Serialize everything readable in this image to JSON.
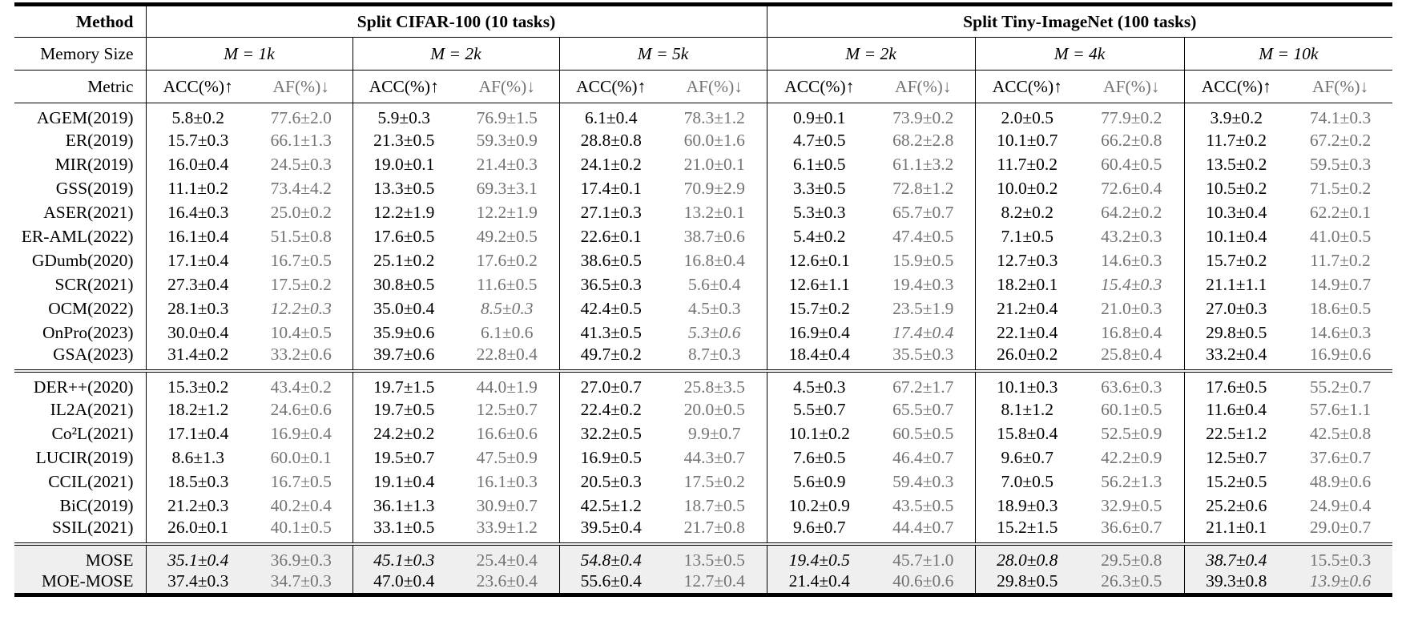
{
  "header": {
    "method_label": "Method",
    "dataset1": "Split CIFAR-100 (10 tasks)",
    "dataset2": "Split Tiny-ImageNet (100 tasks)",
    "memory_label": "Memory Size",
    "memory_sizes": [
      "M = 1k",
      "M = 2k",
      "M = 5k",
      "M = 2k",
      "M = 4k",
      "M = 10k"
    ],
    "metric_label": "Metric",
    "acc_label": "ACC(%)↑",
    "af_label": "AF(%)↓"
  },
  "groups": [
    {
      "rows": [
        {
          "method": "AGEM(2019)",
          "cells": [
            "5.8±0.2",
            "77.6±2.0",
            "5.9±0.3",
            "76.9±1.5",
            "6.1±0.4",
            "78.3±1.2",
            "0.9±0.1",
            "73.9±0.2",
            "2.0±0.5",
            "77.9±0.2",
            "3.9±0.2",
            "74.1±0.3"
          ]
        },
        {
          "method": "ER(2019)",
          "cells": [
            "15.7±0.3",
            "66.1±1.3",
            "21.3±0.5",
            "59.3±0.9",
            "28.8±0.8",
            "60.0±1.6",
            "4.7±0.5",
            "68.2±2.8",
            "10.1±0.7",
            "66.2±0.8",
            "11.7±0.2",
            "67.2±0.2"
          ]
        },
        {
          "method": "MIR(2019)",
          "cells": [
            "16.0±0.4",
            "24.5±0.3",
            "19.0±0.1",
            "21.4±0.3",
            "24.1±0.2",
            "21.0±0.1",
            "6.1±0.5",
            "61.1±3.2",
            "11.7±0.2",
            "60.4±0.5",
            "13.5±0.2",
            "59.5±0.3"
          ]
        },
        {
          "method": "GSS(2019)",
          "cells": [
            "11.1±0.2",
            "73.4±4.2",
            "13.3±0.5",
            "69.3±3.1",
            "17.4±0.1",
            "70.9±2.9",
            "3.3±0.5",
            "72.8±1.2",
            "10.0±0.2",
            "72.6±0.4",
            "10.5±0.2",
            "71.5±0.2"
          ]
        },
        {
          "method": "ASER(2021)",
          "cells": [
            "16.4±0.3",
            "25.0±0.2",
            "12.2±1.9",
            "12.2±1.9",
            "27.1±0.3",
            "13.2±0.1",
            "5.3±0.3",
            "65.7±0.7",
            "8.2±0.2",
            "64.2±0.2",
            "10.3±0.4",
            "62.2±0.1"
          ]
        },
        {
          "method": "ER-AML(2022)",
          "cells": [
            "16.1±0.4",
            "51.5±0.8",
            "17.6±0.5",
            "49.2±0.5",
            "22.6±0.1",
            "38.7±0.6",
            "5.4±0.2",
            "47.4±0.5",
            "7.1±0.5",
            "43.2±0.3",
            "10.1±0.4",
            "41.0±0.5"
          ]
        },
        {
          "method": "GDumb(2020)",
          "cells": [
            "17.1±0.4",
            "16.7±0.5",
            "25.1±0.2",
            "17.6±0.2",
            "38.6±0.5",
            "16.8±0.4",
            "12.6±0.1",
            "15.9±0.5",
            "12.7±0.3",
            "14.6±0.3",
            "15.7±0.2",
            "11.7±0.2"
          ],
          "bold": [
            7,
            9,
            11
          ]
        },
        {
          "method": "SCR(2021)",
          "cells": [
            "27.3±0.4",
            "17.5±0.2",
            "30.8±0.5",
            "11.6±0.5",
            "36.5±0.3",
            "5.6±0.4",
            "12.6±1.1",
            "19.4±0.3",
            "18.2±0.1",
            "15.4±0.3",
            "21.1±1.1",
            "14.9±0.7"
          ],
          "italic": [
            9
          ]
        },
        {
          "method": "OCM(2022)",
          "cells": [
            "28.1±0.3",
            "12.2±0.3",
            "35.0±0.4",
            "8.5±0.3",
            "42.4±0.5",
            "4.5±0.3",
            "15.7±0.2",
            "23.5±1.9",
            "21.2±0.4",
            "21.0±0.3",
            "27.0±0.3",
            "18.6±0.5"
          ],
          "italic": [
            1,
            3
          ],
          "bold": [
            5
          ]
        },
        {
          "method": "OnPro(2023)",
          "cells": [
            "30.0±0.4",
            "10.4±0.5",
            "35.9±0.6",
            "6.1±0.6",
            "41.3±0.5",
            "5.3±0.6",
            "16.9±0.4",
            "17.4±0.4",
            "22.1±0.4",
            "16.8±0.4",
            "29.8±0.5",
            "14.6±0.3"
          ],
          "bold": [
            1,
            3
          ],
          "italic": [
            5,
            7
          ]
        },
        {
          "method": "GSA(2023)",
          "cells": [
            "31.4±0.2",
            "33.2±0.6",
            "39.7±0.6",
            "22.8±0.4",
            "49.7±0.2",
            "8.7±0.3",
            "18.4±0.4",
            "35.5±0.3",
            "26.0±0.2",
            "25.8±0.4",
            "33.2±0.4",
            "16.9±0.6"
          ]
        }
      ]
    },
    {
      "rows": [
        {
          "method": "DER++(2020)",
          "cells": [
            "15.3±0.2",
            "43.4±0.2",
            "19.7±1.5",
            "44.0±1.9",
            "27.0±0.7",
            "25.8±3.5",
            "4.5±0.3",
            "67.2±1.7",
            "10.1±0.3",
            "63.6±0.3",
            "17.6±0.5",
            "55.2±0.7"
          ]
        },
        {
          "method": "IL2A(2021)",
          "cells": [
            "18.2±1.2",
            "24.6±0.6",
            "19.7±0.5",
            "12.5±0.7",
            "22.4±0.2",
            "20.0±0.5",
            "5.5±0.7",
            "65.5±0.7",
            "8.1±1.2",
            "60.1±0.5",
            "11.6±0.4",
            "57.6±1.1"
          ]
        },
        {
          "method": "Co²L(2021)",
          "cells": [
            "17.1±0.4",
            "16.9±0.4",
            "24.2±0.2",
            "16.6±0.6",
            "32.2±0.5",
            "9.9±0.7",
            "10.1±0.2",
            "60.5±0.5",
            "15.8±0.4",
            "52.5±0.9",
            "22.5±1.2",
            "42.5±0.8"
          ]
        },
        {
          "method": "LUCIR(2019)",
          "cells": [
            "8.6±1.3",
            "60.0±0.1",
            "19.5±0.7",
            "47.5±0.9",
            "16.9±0.5",
            "44.3±0.7",
            "7.6±0.5",
            "46.4±0.7",
            "9.6±0.7",
            "42.2±0.9",
            "12.5±0.7",
            "37.6±0.7"
          ]
        },
        {
          "method": "CCIL(2021)",
          "cells": [
            "18.5±0.3",
            "16.7±0.5",
            "19.1±0.4",
            "16.1±0.3",
            "20.5±0.3",
            "17.5±0.2",
            "5.6±0.9",
            "59.4±0.3",
            "7.0±0.5",
            "56.2±1.3",
            "15.2±0.5",
            "48.9±0.6"
          ]
        },
        {
          "method": "BiC(2019)",
          "cells": [
            "21.2±0.3",
            "40.2±0.4",
            "36.1±1.3",
            "30.9±0.7",
            "42.5±1.2",
            "18.7±0.5",
            "10.2±0.9",
            "43.5±0.5",
            "18.9±0.3",
            "32.9±0.5",
            "25.2±0.6",
            "24.9±0.4"
          ]
        },
        {
          "method": "SSIL(2021)",
          "cells": [
            "26.0±0.1",
            "40.1±0.5",
            "33.1±0.5",
            "33.9±1.2",
            "39.5±0.4",
            "21.7±0.8",
            "9.6±0.7",
            "44.4±0.7",
            "15.2±1.5",
            "36.6±0.7",
            "21.1±0.1",
            "29.0±0.7"
          ]
        }
      ]
    },
    {
      "rows": [
        {
          "method": "MOSE",
          "cells": [
            "35.1±0.4",
            "36.9±0.3",
            "45.1±0.3",
            "25.4±0.4",
            "54.8±0.4",
            "13.5±0.5",
            "19.4±0.5",
            "45.7±1.0",
            "28.0±0.8",
            "29.5±0.8",
            "38.7±0.4",
            "15.5±0.3"
          ],
          "italic": [
            0,
            2,
            4,
            6,
            8,
            10
          ]
        },
        {
          "method": "MOE-MOSE",
          "cells": [
            "37.4±0.3",
            "34.7±0.3",
            "47.0±0.4",
            "23.6±0.4",
            "55.6±0.4",
            "12.7±0.4",
            "21.4±0.4",
            "40.6±0.6",
            "29.8±0.5",
            "26.3±0.5",
            "39.3±0.8",
            "13.9±0.6"
          ],
          "bold": [
            0,
            2,
            4,
            6,
            8,
            10
          ],
          "italic": [
            11
          ]
        }
      ]
    }
  ]
}
